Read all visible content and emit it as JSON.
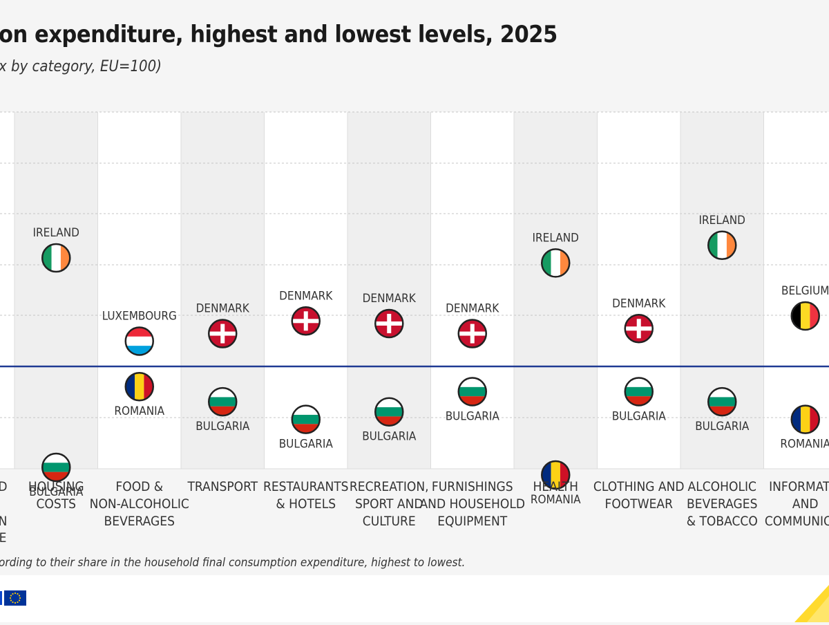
{
  "header": {
    "title": "on expenditure, highest and lowest levels, 2025",
    "subtitle": "x by category, EU=100)"
  },
  "note": "ording to their share in the household final consumption expenditure, highest to lowest.",
  "colors": {
    "reference_line": "#1f3a93",
    "band": "#efefef",
    "gridline": "#c4c4c4",
    "text": "#333333",
    "eu_flag": "#003399",
    "eu_stars": "#ffcc00",
    "accent_corner": "#ffd617"
  },
  "chart_data": {
    "type": "scatter",
    "reference_value": 100,
    "ylim": [
      50,
      180
    ],
    "first_column_label_lines": [
      "D",
      "N",
      "E"
    ],
    "categories": [
      {
        "label_lines": [
          "HOUSING",
          "COSTS"
        ],
        "high": {
          "country": "IRELAND",
          "flag": "ireland",
          "value": 143
        },
        "low": {
          "country": "BULGARIA",
          "flag": "bulgaria",
          "value": 60
        }
      },
      {
        "label_lines": [
          "FOOD &",
          "NON-ALCOHOLIC",
          "BEVERAGES"
        ],
        "high": {
          "country": "LUXEMBOURG",
          "flag": "luxembourg",
          "value": 110
        },
        "low": {
          "country": "ROMANIA",
          "flag": "romania",
          "value": 92
        }
      },
      {
        "label_lines": [
          "TRANSPORT"
        ],
        "high": {
          "country": "DENMARK",
          "flag": "denmark",
          "value": 113
        },
        "low": {
          "country": "BULGARIA",
          "flag": "bulgaria",
          "value": 86
        }
      },
      {
        "label_lines": [
          "RESTAURANTS",
          "& HOTELS"
        ],
        "high": {
          "country": "DENMARK",
          "flag": "denmark",
          "value": 118
        },
        "low": {
          "country": "BULGARIA",
          "flag": "bulgaria",
          "value": 79
        }
      },
      {
        "label_lines": [
          "RECREATION,",
          "SPORT AND",
          "CULTURE"
        ],
        "high": {
          "country": "DENMARK",
          "flag": "denmark",
          "value": 117
        },
        "low": {
          "country": "BULGARIA",
          "flag": "bulgaria",
          "value": 82
        }
      },
      {
        "label_lines": [
          "FURNISHINGS",
          "AND HOUSEHOLD",
          "EQUIPMENT"
        ],
        "high": {
          "country": "DENMARK",
          "flag": "denmark",
          "value": 113
        },
        "low": {
          "country": "BULGARIA",
          "flag": "bulgaria",
          "value": 90
        }
      },
      {
        "label_lines": [
          "HEALTH"
        ],
        "high": {
          "country": "IRELAND",
          "flag": "ireland",
          "value": 141
        },
        "low": {
          "country": "ROMANIA",
          "flag": "romania",
          "value": 57
        }
      },
      {
        "label_lines": [
          "CLOTHING AND",
          "FOOTWEAR"
        ],
        "high": {
          "country": "DENMARK",
          "flag": "denmark",
          "value": 115
        },
        "low": {
          "country": "BULGARIA",
          "flag": "bulgaria",
          "value": 90
        }
      },
      {
        "label_lines": [
          "ALCOHOLIC",
          "BEVERAGES",
          "& TOBACCO"
        ],
        "high": {
          "country": "IRELAND",
          "flag": "ireland",
          "value": 148
        },
        "low": {
          "country": "BULGARIA",
          "flag": "bulgaria",
          "value": 86
        }
      },
      {
        "label_lines": [
          "INFORMATIC",
          "AND",
          "COMMUNICAT"
        ],
        "high": {
          "country": "BELGIUM",
          "flag": "belgium",
          "value": 120
        },
        "low": {
          "country": "ROMANIA",
          "flag": "romania",
          "value": 79
        }
      }
    ]
  }
}
